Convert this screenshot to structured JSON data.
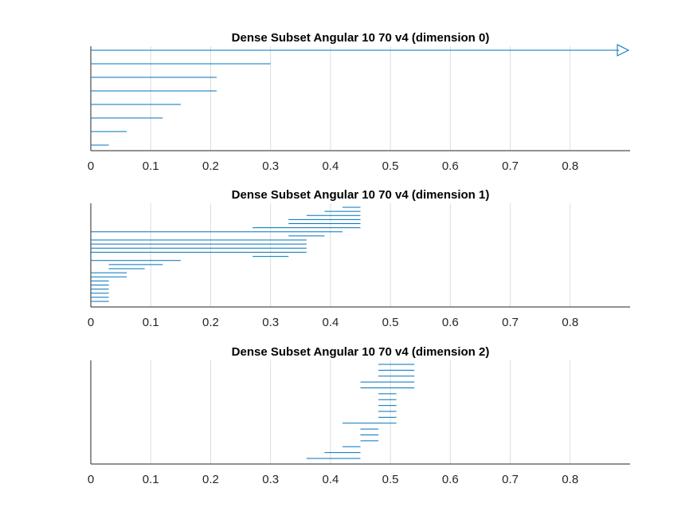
{
  "chart_data": [
    {
      "type": "barcode",
      "title": "Dense Subset Angular 10 70 v4 (dimension 0)",
      "xlim": [
        0,
        0.9
      ],
      "xticks": [
        "0",
        "0.1",
        "0.2",
        "0.3",
        "0.4",
        "0.5",
        "0.6",
        "0.7",
        "0.8"
      ],
      "grid": "vertical",
      "color": "#0072bd",
      "bars": [
        {
          "birth": 0,
          "death": 0.03
        },
        {
          "birth": 0,
          "death": 0.06
        },
        {
          "birth": 0,
          "death": 0.12
        },
        {
          "birth": 0,
          "death": 0.15
        },
        {
          "birth": 0,
          "death": 0.21
        },
        {
          "birth": 0,
          "death": 0.21
        },
        {
          "birth": 0,
          "death": 0.3
        },
        {
          "birth": 0,
          "death": null
        }
      ]
    },
    {
      "type": "barcode",
      "title": "Dense Subset Angular 10 70 v4 (dimension 1)",
      "xlim": [
        0,
        0.9
      ],
      "xticks": [
        "0",
        "0.1",
        "0.2",
        "0.3",
        "0.4",
        "0.5",
        "0.6",
        "0.7",
        "0.8"
      ],
      "grid": "vertical",
      "color": "#0072bd",
      "bars": [
        {
          "birth": 0,
          "death": 0.03
        },
        {
          "birth": 0,
          "death": 0.03
        },
        {
          "birth": 0,
          "death": 0.03
        },
        {
          "birth": 0,
          "death": 0.03
        },
        {
          "birth": 0,
          "death": 0.03
        },
        {
          "birth": 0,
          "death": 0.03
        },
        {
          "birth": 0,
          "death": 0.06
        },
        {
          "birth": 0,
          "death": 0.06
        },
        {
          "birth": 0.03,
          "death": 0.09
        },
        {
          "birth": 0.03,
          "death": 0.12
        },
        {
          "birth": 0,
          "death": 0.15
        },
        {
          "birth": 0.27,
          "death": 0.33
        },
        {
          "birth": 0,
          "death": 0.36
        },
        {
          "birth": 0,
          "death": 0.36
        },
        {
          "birth": 0,
          "death": 0.36
        },
        {
          "birth": 0,
          "death": 0.36
        },
        {
          "birth": 0.33,
          "death": 0.39
        },
        {
          "birth": 0,
          "death": 0.42
        },
        {
          "birth": 0.27,
          "death": 0.45
        },
        {
          "birth": 0.33,
          "death": 0.45
        },
        {
          "birth": 0.33,
          "death": 0.45
        },
        {
          "birth": 0.36,
          "death": 0.45
        },
        {
          "birth": 0.39,
          "death": 0.45
        },
        {
          "birth": 0.42,
          "death": 0.45
        }
      ]
    },
    {
      "type": "barcode",
      "title": "Dense Subset Angular 10 70 v4 (dimension 2)",
      "xlim": [
        0,
        0.9
      ],
      "xticks": [
        "0",
        "0.1",
        "0.2",
        "0.3",
        "0.4",
        "0.5",
        "0.6",
        "0.7",
        "0.8"
      ],
      "grid": "vertical",
      "color": "#0072bd",
      "bars": [
        {
          "birth": 0.36,
          "death": 0.45
        },
        {
          "birth": 0.39,
          "death": 0.45
        },
        {
          "birth": 0.42,
          "death": 0.45
        },
        {
          "birth": 0.45,
          "death": 0.48
        },
        {
          "birth": 0.45,
          "death": 0.48
        },
        {
          "birth": 0.45,
          "death": 0.48
        },
        {
          "birth": 0.42,
          "death": 0.51
        },
        {
          "birth": 0.48,
          "death": 0.51
        },
        {
          "birth": 0.48,
          "death": 0.51
        },
        {
          "birth": 0.48,
          "death": 0.51
        },
        {
          "birth": 0.48,
          "death": 0.51
        },
        {
          "birth": 0.48,
          "death": 0.51
        },
        {
          "birth": 0.45,
          "death": 0.54
        },
        {
          "birth": 0.45,
          "death": 0.54
        },
        {
          "birth": 0.48,
          "death": 0.54
        },
        {
          "birth": 0.48,
          "death": 0.54
        },
        {
          "birth": 0.48,
          "death": 0.54
        }
      ]
    }
  ]
}
